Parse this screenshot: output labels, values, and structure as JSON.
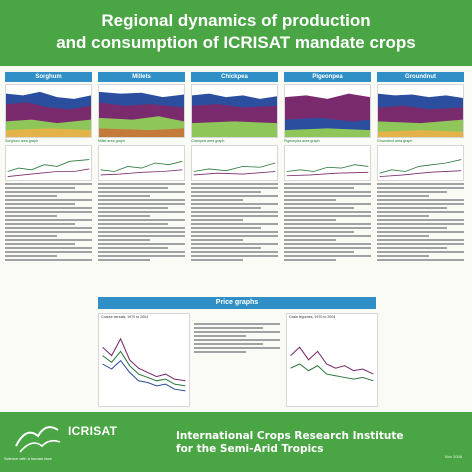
{
  "title": {
    "line1": "Regional dynamics of production",
    "line2": "and consumption of ICRISAT mandate crops"
  },
  "crops": [
    "Sorghum",
    "Millets",
    "Chickpea",
    "Pigeonpea",
    "Groundnut"
  ],
  "chart_captions": [
    "Sorghum area graph",
    "Millet area graph",
    "Chickpea area graph",
    "Pigeonpea area graph",
    "Groundnut area graph"
  ],
  "price_section": {
    "title": "Price graphs",
    "left_caption": "Coarse cereals, 1970 to 2004",
    "right_caption": "Grain legumes, 1970 to 2004"
  },
  "footer": {
    "org_name": "ICRISAT",
    "tagline": "Science with a human face",
    "institute_line1": "International Crops Research Institute",
    "institute_line2": "for the Semi-Arid Tropics",
    "date": "Nov 2008"
  },
  "colors": {
    "header": "#4aa545",
    "band": "#2f8fc6",
    "purple": "#7a2b6e",
    "blue": "#2b4f9e",
    "green": "#8fc65a"
  }
}
